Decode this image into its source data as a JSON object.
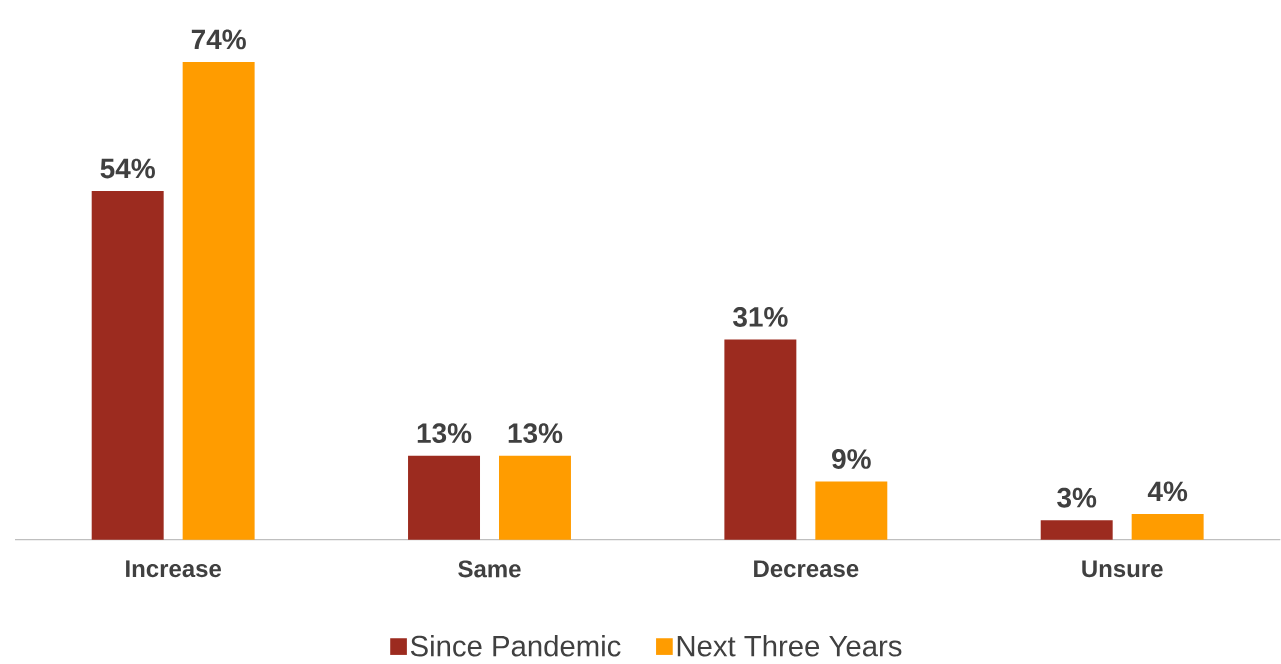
{
  "chart_data": {
    "type": "bar",
    "categories": [
      "Increase",
      "Same",
      "Decrease",
      "Unsure"
    ],
    "series": [
      {
        "name": "Since Pandemic",
        "color": "#9c2b1f",
        "values": [
          54,
          13,
          31,
          3
        ],
        "value_labels": [
          "54%",
          "13%",
          "31%",
          "3%"
        ]
      },
      {
        "name": "Next Three Years",
        "color": "#ff9c00",
        "values": [
          74,
          13,
          9,
          4
        ],
        "value_labels": [
          "74%",
          "13%",
          "9%",
          "4%"
        ]
      }
    ],
    "legend": "bottom"
  }
}
